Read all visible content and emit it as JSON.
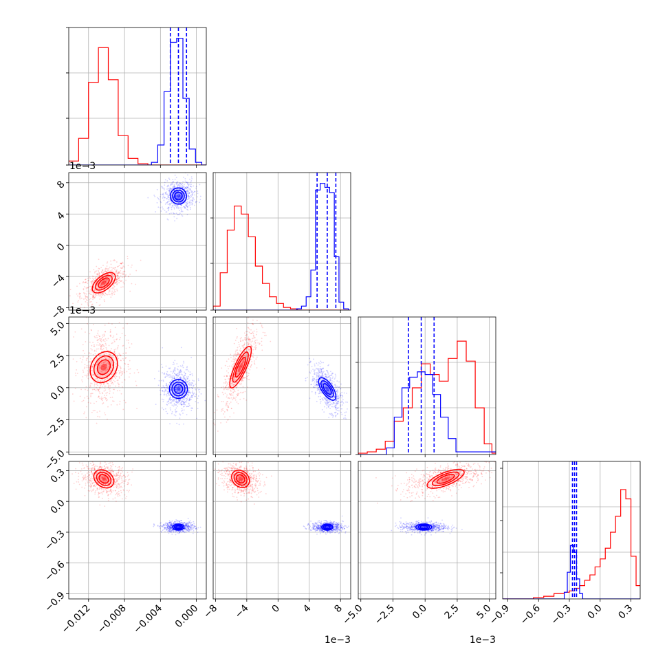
{
  "chart_data": {
    "type": "corner",
    "grid": true,
    "parameters": [
      {
        "name": "",
        "range": [
          -0.0142,
          0.0011
        ],
        "ticks": [],
        "tick_labels": [],
        "offset_text": ""
      },
      {
        "name": "",
        "range": [
          -8.3,
          9.3
        ],
        "ticks": [
          8,
          4,
          0,
          -4,
          -8
        ],
        "tick_labels": [
          "8",
          "4",
          "0",
          "−4",
          "−8"
        ],
        "offset_text": "1e−3"
      },
      {
        "name": "",
        "range": [
          -5.2,
          5.5
        ],
        "ticks": [
          5,
          2.5,
          0,
          -2.5,
          -5
        ],
        "tick_labels": [
          "5.0",
          "2.5",
          "0.0",
          "−2.5",
          "−5.0"
        ],
        "offset_text": "1e−3"
      },
      {
        "name": "",
        "range": [
          -0.95,
          0.39
        ],
        "ticks": [
          0.3,
          0,
          -0.3,
          -0.6,
          -0.9
        ],
        "tick_labels": [
          "0.3",
          "0.0",
          "−0.3",
          "−0.6",
          "−0.9"
        ],
        "offset_text": ""
      }
    ],
    "x_tick_labels": [
      {
        "ticks": [
          -0.012,
          -0.008,
          -0.004,
          0.0
        ],
        "labels": [
          "−0.012",
          "−0.008",
          "−0.004",
          "0.000"
        ],
        "offset_text": ""
      },
      {
        "ticks": [
          -8,
          -4,
          0,
          4,
          8
        ],
        "labels": [
          "−8",
          "−4",
          "0",
          "4",
          "8"
        ],
        "offset_text": "1e−3"
      },
      {
        "ticks": [
          -5,
          -2.5,
          0,
          2.5,
          5
        ],
        "labels": [
          "−5.0",
          "−2.5",
          "0.0",
          "2.5",
          "5.0"
        ],
        "offset_text": "1e−3"
      },
      {
        "ticks": [
          -0.9,
          -0.6,
          -0.3,
          0,
          0.3
        ],
        "labels": [
          "−0.9",
          "−0.6",
          "−0.3",
          "0.0",
          "0.3"
        ],
        "offset_text": ""
      }
    ],
    "series": [
      {
        "color": "#ff0000",
        "means": [
          -0.0103,
          -4.8,
          1.6,
          0.22
        ],
        "sds": [
          0.0013,
          1.2,
          1.6,
          0.08
        ],
        "correlations": {
          "1-0": 0.55,
          "2-0": 0.05,
          "2-1": 0.75,
          "3-0": -0.2,
          "3-1": -0.25,
          "3-2": 0.5
        },
        "quantiles": null,
        "histograms": [
          {
            "edges": [
              -0.0142,
              -0.0131,
              -0.012,
              -0.0109,
              -0.0098,
              -0.0087,
              -0.0076,
              -0.0065,
              -0.0054,
              -0.0043,
              -0.0032,
              -0.0021,
              -0.001,
              0.0001,
              0.0011
            ],
            "counts": [
              0.03,
              0.2,
              0.62,
              0.88,
              0.64,
              0.22,
              0.05,
              0.01,
              0,
              0,
              0,
              0,
              0,
              0
            ]
          },
          {
            "edges": [
              -8.3,
              -7.4,
              -6.5,
              -5.6,
              -4.7,
              -3.8,
              -2.9,
              -2.0,
              -1.1,
              -0.2,
              0.7,
              1.6,
              2.5,
              3.4,
              4.3,
              5.2,
              6.1,
              7.0,
              7.9,
              8.8,
              9.3
            ],
            "counts": [
              0.03,
              0.28,
              0.6,
              0.78,
              0.72,
              0.55,
              0.33,
              0.2,
              0.1,
              0.05,
              0.02,
              0.01,
              0,
              0,
              0,
              0,
              0,
              0,
              0,
              0
            ]
          },
          {
            "edges": [
              -5.2,
              -4.5,
              -3.8,
              -3.1,
              -2.4,
              -1.7,
              -1.0,
              -0.3,
              0.4,
              1.1,
              1.8,
              2.5,
              3.2,
              3.9,
              4.6,
              5.2,
              5.5
            ],
            "counts": [
              0.01,
              0.02,
              0.04,
              0.1,
              0.25,
              0.35,
              0.5,
              0.68,
              0.6,
              0.55,
              0.72,
              0.85,
              0.7,
              0.35,
              0.08,
              0.01
            ]
          },
          {
            "edges": [
              -0.95,
              -0.85,
              -0.75,
              -0.65,
              -0.55,
              -0.45,
              -0.35,
              -0.3,
              -0.25,
              -0.2,
              -0.15,
              -0.1,
              -0.05,
              0.0,
              0.05,
              0.1,
              0.15,
              0.2,
              0.25,
              0.3,
              0.35,
              0.39
            ],
            "counts": [
              0,
              0,
              0,
              0.01,
              0.02,
              0.04,
              0.05,
              0.06,
              0.08,
              0.1,
              0.14,
              0.18,
              0.24,
              0.3,
              0.38,
              0.5,
              0.62,
              0.82,
              0.75,
              0.32,
              0.1
            ]
          }
        ]
      },
      {
        "color": "#0000ff",
        "means": [
          -0.002,
          6.3,
          -0.1,
          -0.25
        ],
        "sds": [
          0.0009,
          1.0,
          0.9,
          0.025
        ],
        "correlations": {
          "1-0": 0.1,
          "2-0": 0.0,
          "2-1": -0.6,
          "3-0": 0.0,
          "3-1": 0.0,
          "3-2": 0.0
        },
        "quantiles": [
          [
            -0.0029,
            -0.002,
            -0.0011
          ],
          [
            5.0,
            6.3,
            7.4
          ],
          [
            -1.3,
            -0.3,
            0.7
          ],
          [
            -0.27,
            -0.25,
            -0.23
          ]
        ],
        "histograms": [
          {
            "edges": [
              -0.0142,
              -0.005,
              -0.0043,
              -0.0036,
              -0.0029,
              -0.0022,
              -0.0015,
              -0.0008,
              -0.0001,
              0.0006,
              0.0011
            ],
            "counts": [
              0,
              0.02,
              0.15,
              0.55,
              0.92,
              0.95,
              0.5,
              0.12,
              0.02,
              0
            ]
          },
          {
            "edges": [
              -8.3,
              2.4,
              3.0,
              3.6,
              4.2,
              4.8,
              5.4,
              6.0,
              6.6,
              7.2,
              7.8,
              8.4,
              9.0,
              9.3
            ],
            "counts": [
              0,
              0.01,
              0.03,
              0.1,
              0.3,
              0.9,
              0.95,
              0.92,
              0.88,
              0.4,
              0.06,
              0.01,
              0
            ]
          },
          {
            "edges": [
              -5.2,
              -3.0,
              -2.4,
              -1.8,
              -1.2,
              -0.6,
              0.0,
              0.6,
              1.2,
              1.8,
              2.4,
              5.5
            ],
            "counts": [
              0,
              0.05,
              0.28,
              0.5,
              0.58,
              0.62,
              0.6,
              0.45,
              0.28,
              0.12,
              0.02
            ]
          },
          {
            "edges": [
              -0.95,
              -0.35,
              -0.32,
              -0.29,
              -0.26,
              -0.23,
              -0.2,
              -0.17,
              0.39
            ],
            "counts": [
              0,
              0.05,
              0.2,
              0.4,
              0.35,
              0.15,
              0.04,
              0
            ]
          }
        ]
      }
    ]
  }
}
